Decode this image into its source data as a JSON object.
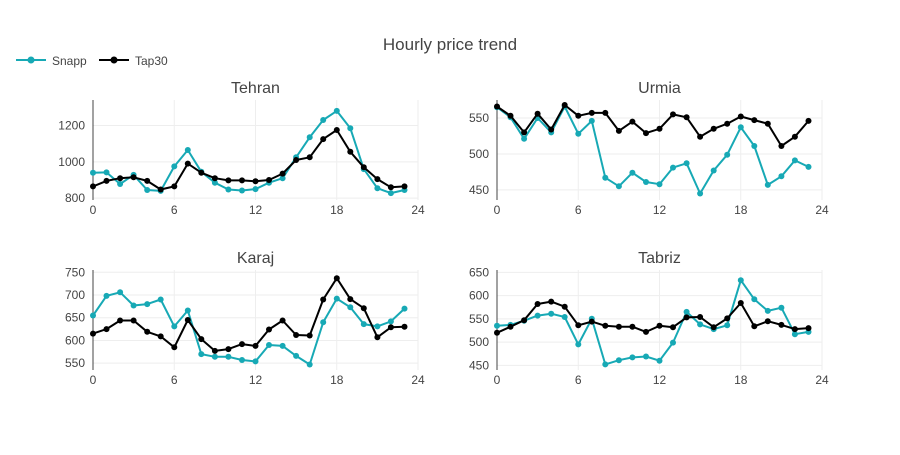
{
  "chart_data": {
    "type": "line",
    "title": "Hourly price trend",
    "legend": {
      "placement": "top-left",
      "entries": [
        {
          "name": "Snapp",
          "color": "#17a9b5"
        },
        {
          "name": "Tap30",
          "color": "#000000"
        }
      ]
    },
    "x": [
      0,
      1,
      2,
      3,
      4,
      5,
      6,
      7,
      8,
      9,
      10,
      11,
      12,
      13,
      14,
      15,
      16,
      17,
      18,
      19,
      20,
      21,
      22,
      23
    ],
    "xlim": [
      0,
      24
    ],
    "xticks": [
      0,
      6,
      12,
      18,
      24
    ],
    "grid": true,
    "panels": [
      {
        "title": "Tehran",
        "ylim": [
          790,
          1340
        ],
        "yticks": [
          800,
          1000,
          1200
        ],
        "series": [
          {
            "name": "Snapp",
            "values": [
              940,
              942,
              878,
              928,
              845,
              840,
              975,
              1065,
              945,
              885,
              848,
              842,
              850,
              885,
              910,
              1025,
              1135,
              1230,
              1280,
              1185,
              960,
              855,
              828,
              845
            ]
          },
          {
            "name": "Tap30",
            "values": [
              865,
              895,
              910,
              915,
              895,
              848,
              865,
              990,
              940,
              910,
              898,
              898,
              893,
              900,
              935,
              1010,
              1025,
              1125,
              1175,
              1055,
              970,
              905,
              860,
              865
            ]
          }
        ]
      },
      {
        "title": "Urmia",
        "ylim": [
          436,
          575
        ],
        "yticks": [
          450,
          500,
          550
        ],
        "series": [
          {
            "name": "Snapp",
            "values": [
              565,
              551,
              521,
              550,
              530,
              566,
              528,
              546,
              467,
              455,
              474,
              461,
              458,
              481,
              487,
              445,
              477,
              499,
              537,
              511,
              457,
              469,
              491,
              482
            ]
          },
          {
            "name": "Tap30",
            "values": [
              566,
              553,
              530,
              556,
              534,
              568,
              553,
              557,
              557,
              532,
              545,
              529,
              535,
              555,
              551,
              524,
              535,
              542,
              552,
              547,
              542,
              511,
              524,
              546
            ]
          }
        ]
      },
      {
        "title": "Karaj",
        "ylim": [
          535,
          755
        ],
        "yticks": [
          550,
          600,
          650,
          700,
          750
        ],
        "series": [
          {
            "name": "Snapp",
            "values": [
              655,
              698,
              706,
              677,
              680,
              690,
              631,
              666,
              570,
              564,
              564,
              557,
              554,
              590,
              588,
              566,
              547,
              640,
              692,
              673,
              636,
              631,
              642,
              670
            ]
          },
          {
            "name": "Tap30",
            "values": [
              615,
              625,
              644,
              644,
              619,
              609,
              585,
              645,
              603,
              577,
              581,
              592,
              588,
              624,
              644,
              612,
              611,
              690,
              737,
              691,
              671,
              607,
              629,
              630
            ]
          }
        ]
      },
      {
        "title": "Tabriz",
        "ylim": [
          440,
          655
        ],
        "yticks": [
          450,
          500,
          550,
          600,
          650
        ],
        "series": [
          {
            "name": "Snapp",
            "values": [
              535,
              537,
              546,
              557,
              561,
              554,
              495,
              550,
              452,
              461,
              467,
              469,
              460,
              499,
              565,
              538,
              528,
              536,
              633,
              592,
              567,
              574,
              517,
              522
            ]
          },
          {
            "name": "Tap30",
            "values": [
              520,
              533,
              547,
              582,
              587,
              576,
              536,
              544,
              535,
              533,
              533,
              522,
              535,
              532,
              553,
              554,
              532,
              551,
              584,
              534,
              545,
              537,
              528,
              530
            ]
          }
        ]
      }
    ]
  }
}
